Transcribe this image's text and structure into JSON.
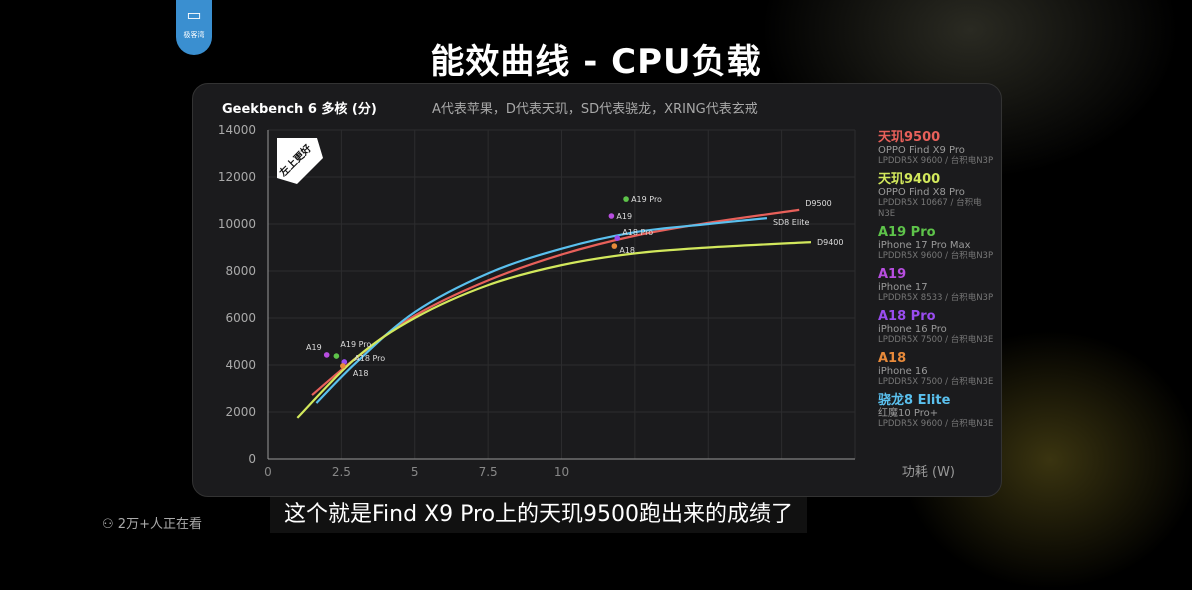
{
  "logo": {
    "text": "极客湾",
    "icon": "gpu-card-icon",
    "color": "#3a8fd0"
  },
  "page_title": "能效曲线 - CPU负载",
  "caption": "这个就是Find X9 Pro上的天玑9500跑出来的成绩了",
  "viewers": {
    "icon": "people-icon",
    "text": "2万+人正在看"
  },
  "chart_data": {
    "type": "line",
    "title": "Geekbench 6 多核 (分)",
    "subtitle": "A代表苹果，D代表天玑，SD代表骁龙，XRING代表玄戒",
    "badge": "左上更好",
    "xlabel": "功耗 (W)",
    "xlim": [
      0,
      20
    ],
    "ylim": [
      0,
      14000
    ],
    "xticks": [
      "0",
      "2.5",
      "5",
      "7.5",
      "10"
    ],
    "yticks": [
      "0",
      "2000",
      "4000",
      "6000",
      "8000",
      "10000",
      "12000",
      "14000"
    ],
    "grid": true,
    "legend_position": "right",
    "series": [
      {
        "name": "D9500",
        "color": "#e8605a",
        "points": [
          [
            1.5,
            2720
          ],
          [
            3,
            4300
          ],
          [
            5,
            6100
          ],
          [
            7.5,
            7600
          ],
          [
            10,
            8700
          ],
          [
            12.5,
            9500
          ],
          [
            15,
            10050
          ],
          [
            18.1,
            10600
          ]
        ]
      },
      {
        "name": "SD8 Elite",
        "color": "#5ac0ee",
        "points": [
          [
            1.65,
            2380
          ],
          [
            3,
            4100
          ],
          [
            5,
            6250
          ],
          [
            7.5,
            7900
          ],
          [
            10,
            8950
          ],
          [
            12.5,
            9650
          ],
          [
            15,
            10000
          ],
          [
            17,
            10250
          ]
        ]
      },
      {
        "name": "D9400",
        "color": "#d2e85c",
        "points": [
          [
            1.0,
            1750
          ],
          [
            3,
            4300
          ],
          [
            5,
            6000
          ],
          [
            7.5,
            7400
          ],
          [
            10,
            8250
          ],
          [
            12.5,
            8750
          ],
          [
            15,
            9000
          ],
          [
            18.5,
            9230
          ]
        ]
      }
    ],
    "points": [
      {
        "name": "A19",
        "color": "#b84ee0",
        "x": 2.0,
        "y": 4430
      },
      {
        "name": "A19 Pro",
        "color": "#5ec44a",
        "x": 2.33,
        "y": 4380
      },
      {
        "name": "A18 Pro",
        "color": "#9a4cf0",
        "x": 2.6,
        "y": 4130
      },
      {
        "name": "A18",
        "color": "#e88a3a",
        "x": 2.55,
        "y": 3960
      },
      {
        "name": "A19 Pro",
        "color": "#5ec44a",
        "x": 12.2,
        "y": 11060
      },
      {
        "name": "A19",
        "color": "#b84ee0",
        "x": 11.7,
        "y": 10340
      },
      {
        "name": "A18 Pro",
        "color": "#9a4cf0",
        "x": 11.9,
        "y": 9400
      },
      {
        "name": "A18",
        "color": "#e88a3a",
        "x": 11.8,
        "y": 9060
      }
    ],
    "legend": [
      {
        "name": "天玑9500",
        "device": "OPPO Find X9 Pro",
        "memory": "LPDDR5X 9600 / 台积电N3P",
        "color": "#e8605a"
      },
      {
        "name": "天玑9400",
        "device": "OPPO Find X8 Pro",
        "memory": "LPDDR5X 10667 / 台积电N3E",
        "color": "#d2e85c"
      },
      {
        "name": "A19 Pro",
        "device": "iPhone 17 Pro Max",
        "memory": "LPDDR5X 9600 / 台积电N3P",
        "color": "#5ec44a"
      },
      {
        "name": "A19",
        "device": "iPhone 17",
        "memory": "LPDDR5X 8533 / 台积电N3P",
        "color": "#b84ee0"
      },
      {
        "name": "A18 Pro",
        "device": "iPhone 16 Pro",
        "memory": "LPDDR5X 7500 / 台积电N3E",
        "color": "#9a4cf0"
      },
      {
        "name": "A18",
        "device": "iPhone 16",
        "memory": "LPDDR5X 7500 / 台积电N3E",
        "color": "#e88a3a"
      },
      {
        "name": "骁龙8 Elite",
        "device": "红魔10 Pro+",
        "memory": "LPDDR5X 9600 / 台积电N3E",
        "color": "#5ac0ee"
      }
    ]
  }
}
